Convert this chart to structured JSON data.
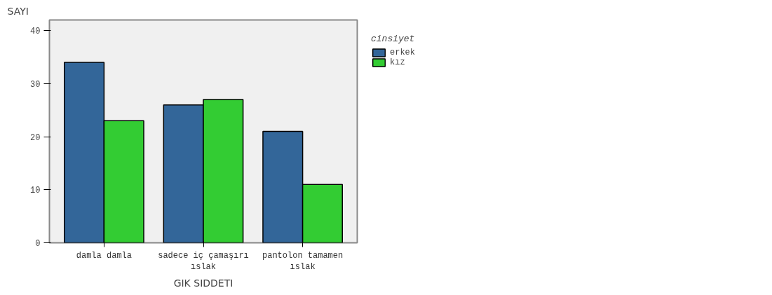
{
  "chart_data": {
    "type": "bar",
    "xlabel": "GIK SIDDETI",
    "ylabel": "SAYI",
    "legend_title": "cinsiyet",
    "categories": [
      "damla damla",
      "sadece iç çamaşırı\nıslak",
      "pantolon tamamen\nıslak"
    ],
    "series": [
      {
        "name": "erkek",
        "color": "#336699",
        "values": [
          34,
          26,
          21
        ]
      },
      {
        "name": "kız",
        "color": "#33cc33",
        "values": [
          23,
          27,
          11
        ]
      }
    ],
    "ylim": [
      0,
      42
    ],
    "yticks": [
      0,
      10,
      20,
      30,
      40
    ],
    "grid": false,
    "legend": "top right"
  }
}
